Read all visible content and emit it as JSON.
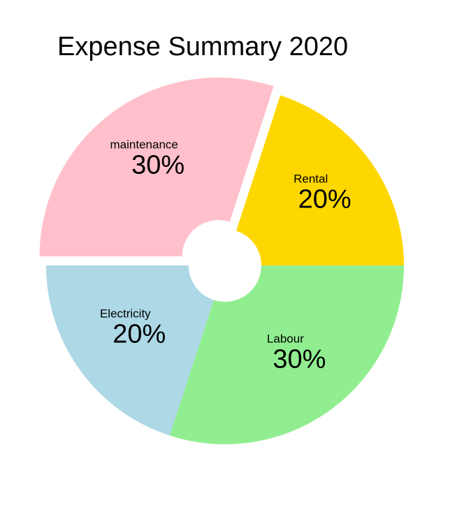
{
  "chart_data": {
    "type": "pie",
    "title": "Expense Summary 2020",
    "slices": [
      {
        "name": "Rental",
        "value": 20,
        "label": "20%",
        "color": "#ffd700",
        "exploded": false
      },
      {
        "name": "maintenance",
        "value": 30,
        "label": "30%",
        "color": "#ffc0cb",
        "exploded": true
      },
      {
        "name": "Electricity",
        "value": 20,
        "label": "20%",
        "color": "#add8e6",
        "exploded": false
      },
      {
        "name": "Labour",
        "value": 30,
        "label": "30%",
        "color": "#90ee90",
        "exploded": false
      }
    ],
    "hole": true,
    "legend": "none"
  }
}
